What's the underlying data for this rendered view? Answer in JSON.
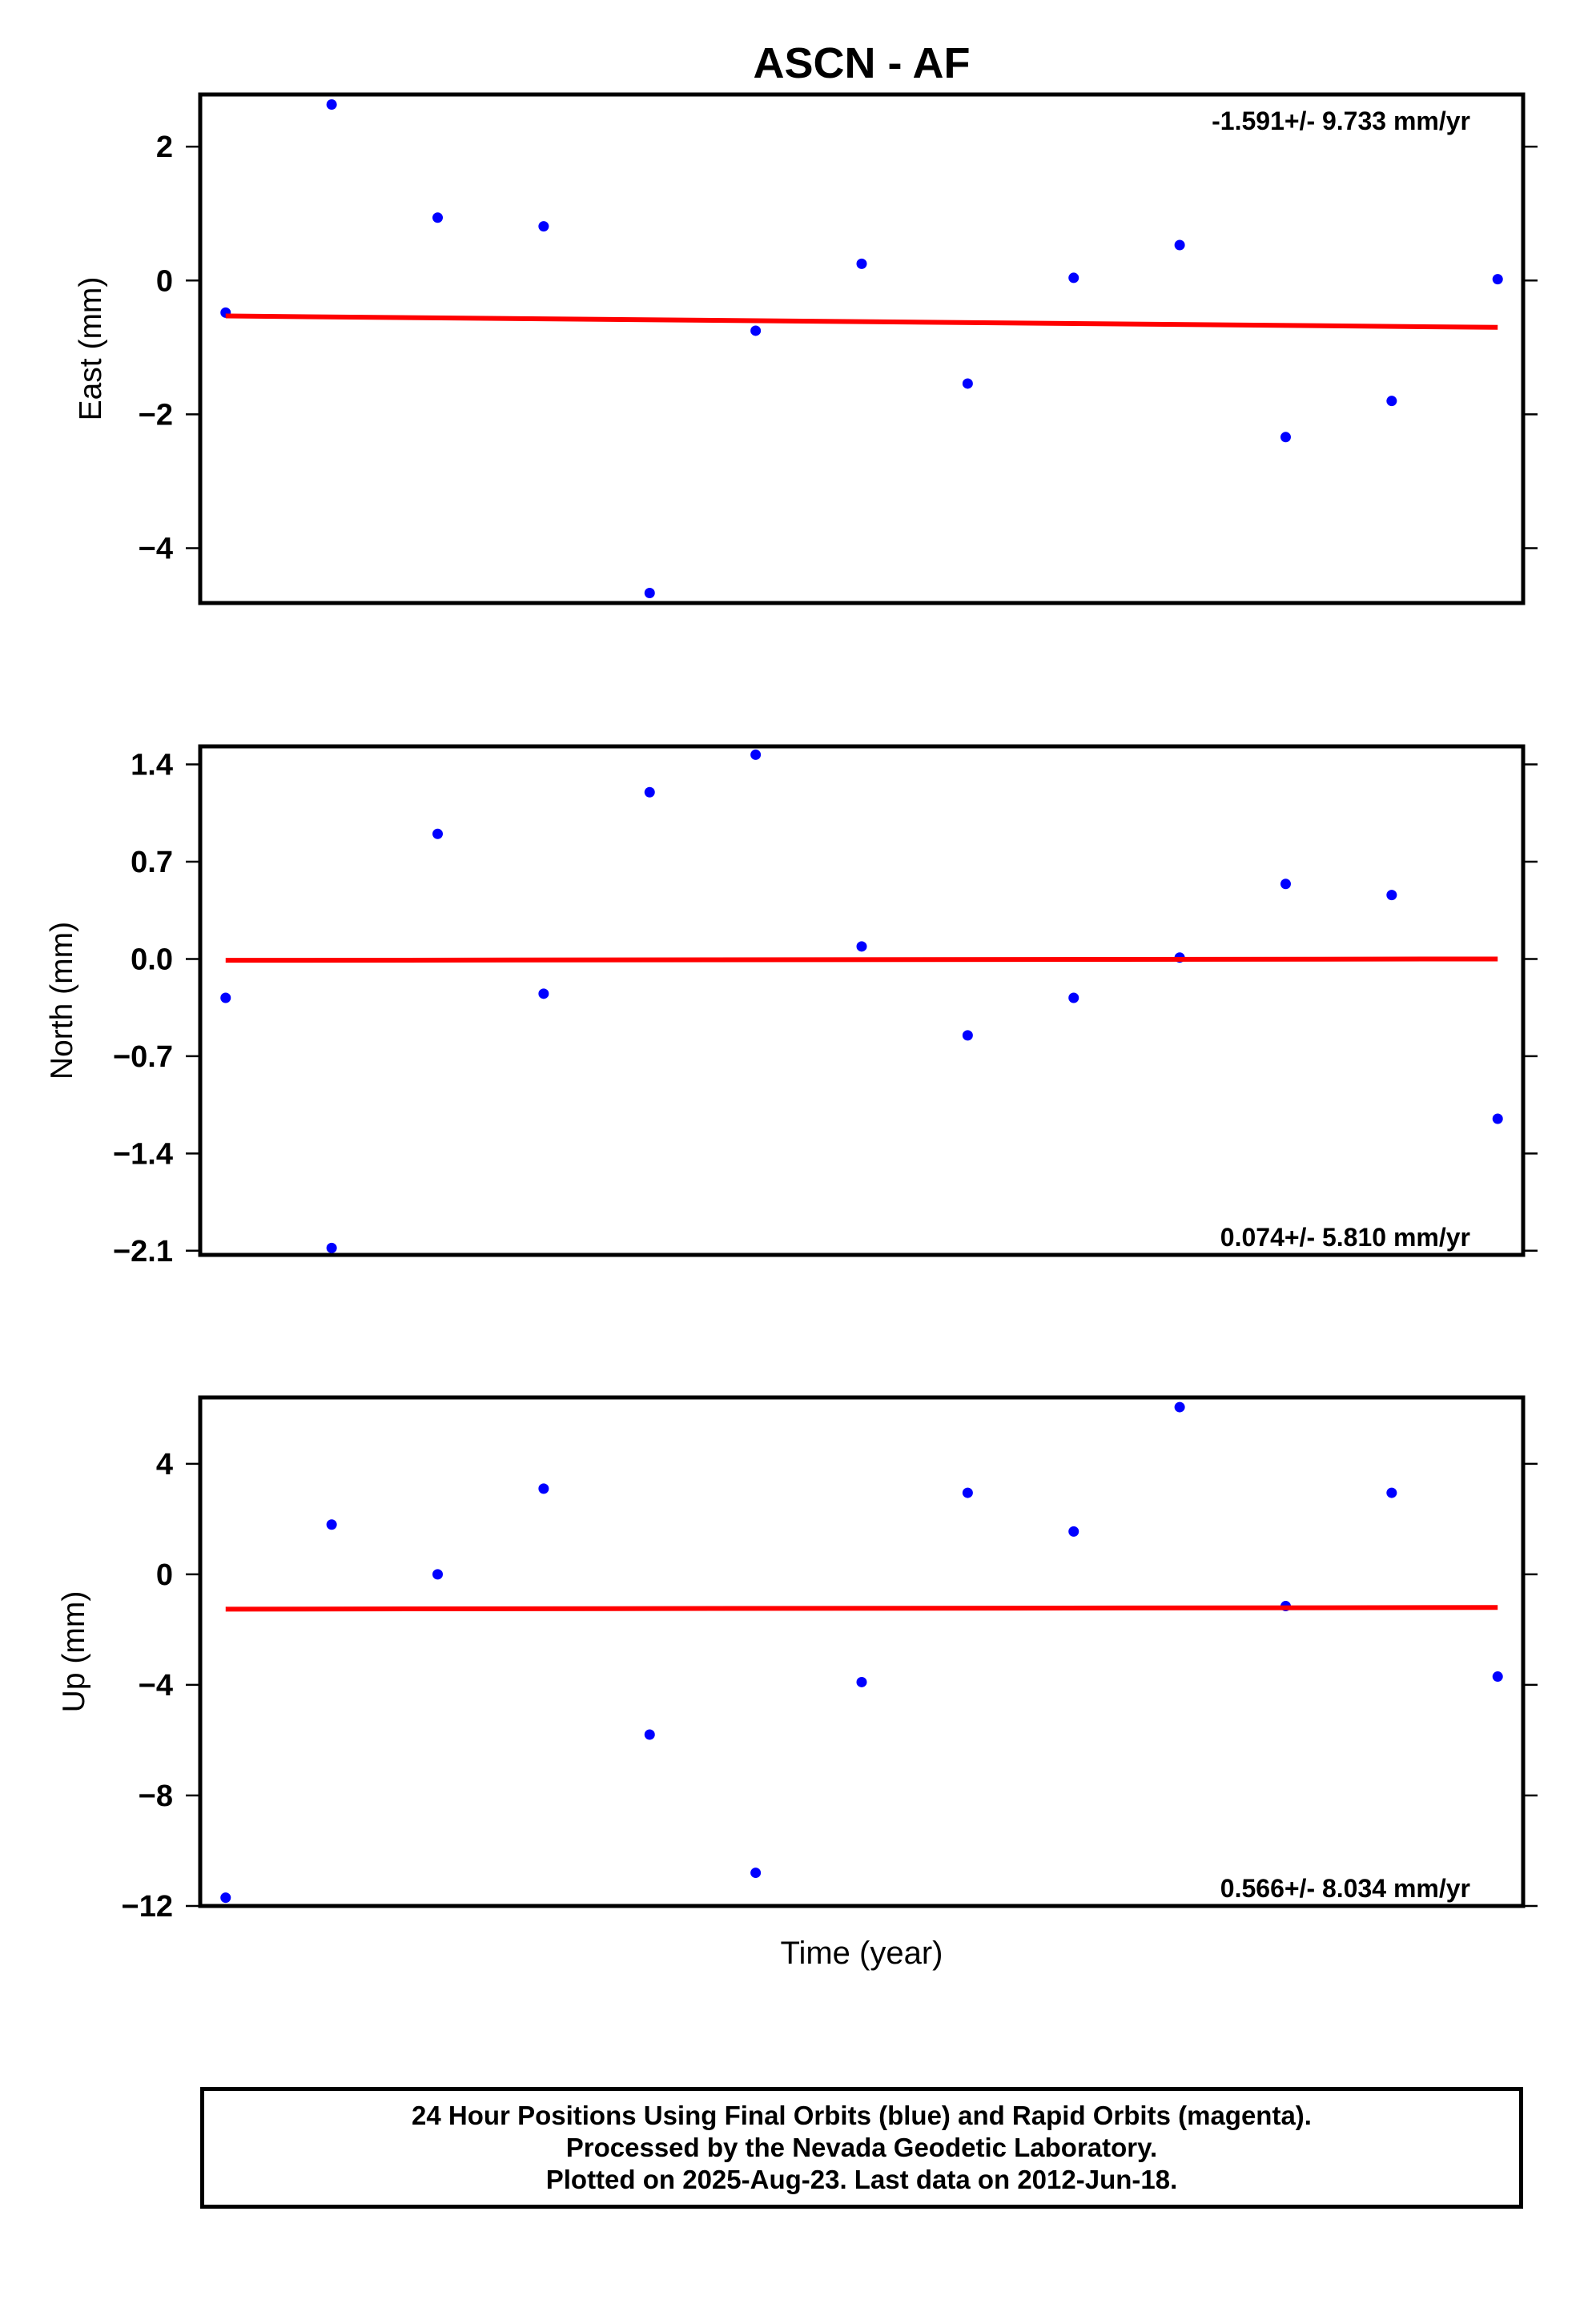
{
  "title": "ASCN - AF",
  "x_axis_label": "Time (year)",
  "colors": {
    "points": "#0000ff",
    "fit_line": "#ff0000",
    "frame": "#000000"
  },
  "chart_data": [
    {
      "type": "scatter",
      "ylabel": "East (mm)",
      "rate_text": "-1.591+/- 9.733 mm/yr",
      "yticks": [
        2,
        0,
        -2,
        -4
      ],
      "ytick_labels": [
        "2",
        "0",
        "−2",
        "−4"
      ],
      "ylim": [
        -4.82,
        2.78
      ],
      "x": [
        0,
        1,
        2,
        3,
        4,
        5,
        6,
        7,
        8,
        9,
        10,
        11,
        12
      ],
      "xlim": [
        -0.24,
        12.24
      ],
      "series": [
        {
          "values": [
            -0.48,
            2.63,
            0.94,
            0.81,
            -4.67,
            -0.75,
            0.25,
            -1.54,
            0.04,
            0.53,
            -2.34,
            -1.8,
            0.02
          ]
        }
      ],
      "fit": [
        -0.53,
        -0.7
      ]
    },
    {
      "type": "scatter",
      "ylabel": "North (mm)",
      "rate_text": "0.074+/- 5.810 mm/yr",
      "yticks": [
        1.4,
        0.7,
        0.0,
        -0.7,
        -1.4,
        -2.1
      ],
      "ytick_labels": [
        "1.4",
        "0.7",
        "0.0",
        "−0.7",
        "−1.4",
        "−2.1"
      ],
      "ylim": [
        -2.13,
        1.53
      ],
      "x": [
        0,
        1,
        2,
        3,
        4,
        5,
        6,
        7,
        8,
        9,
        10,
        11,
        12
      ],
      "xlim": [
        -0.24,
        12.24
      ],
      "series": [
        {
          "values": [
            -0.28,
            -2.08,
            0.9,
            -0.25,
            1.2,
            1.47,
            0.09,
            -0.55,
            -0.28,
            0.01,
            0.54,
            0.46,
            -1.15
          ]
        }
      ],
      "fit": [
        -0.01,
        0.0
      ]
    },
    {
      "type": "scatter",
      "ylabel": "Up (mm)",
      "rate_text": "0.566+/- 8.034 mm/yr",
      "yticks": [
        4,
        0,
        -4,
        -8,
        -12
      ],
      "ytick_labels": [
        "4",
        "0",
        "−4",
        "−8",
        "−12"
      ],
      "ylim": [
        -12.0,
        6.4
      ],
      "x": [
        0,
        1,
        2,
        3,
        4,
        5,
        6,
        7,
        8,
        9,
        10,
        11,
        12
      ],
      "xlim": [
        -0.24,
        12.24
      ],
      "series": [
        {
          "values": [
            -11.7,
            1.8,
            0.0,
            3.1,
            -5.8,
            -10.8,
            -3.9,
            2.95,
            1.55,
            6.05,
            -1.15,
            2.95,
            -3.7
          ]
        }
      ],
      "fit": [
        -1.26,
        -1.2
      ]
    }
  ],
  "caption": {
    "line1": "24 Hour Positions Using Final Orbits (blue) and Rapid Orbits (magenta).",
    "line2": "Processed by the Nevada Geodetic Laboratory.",
    "line3": "Plotted on 2025-Aug-23. Last data on 2012-Jun-18."
  }
}
